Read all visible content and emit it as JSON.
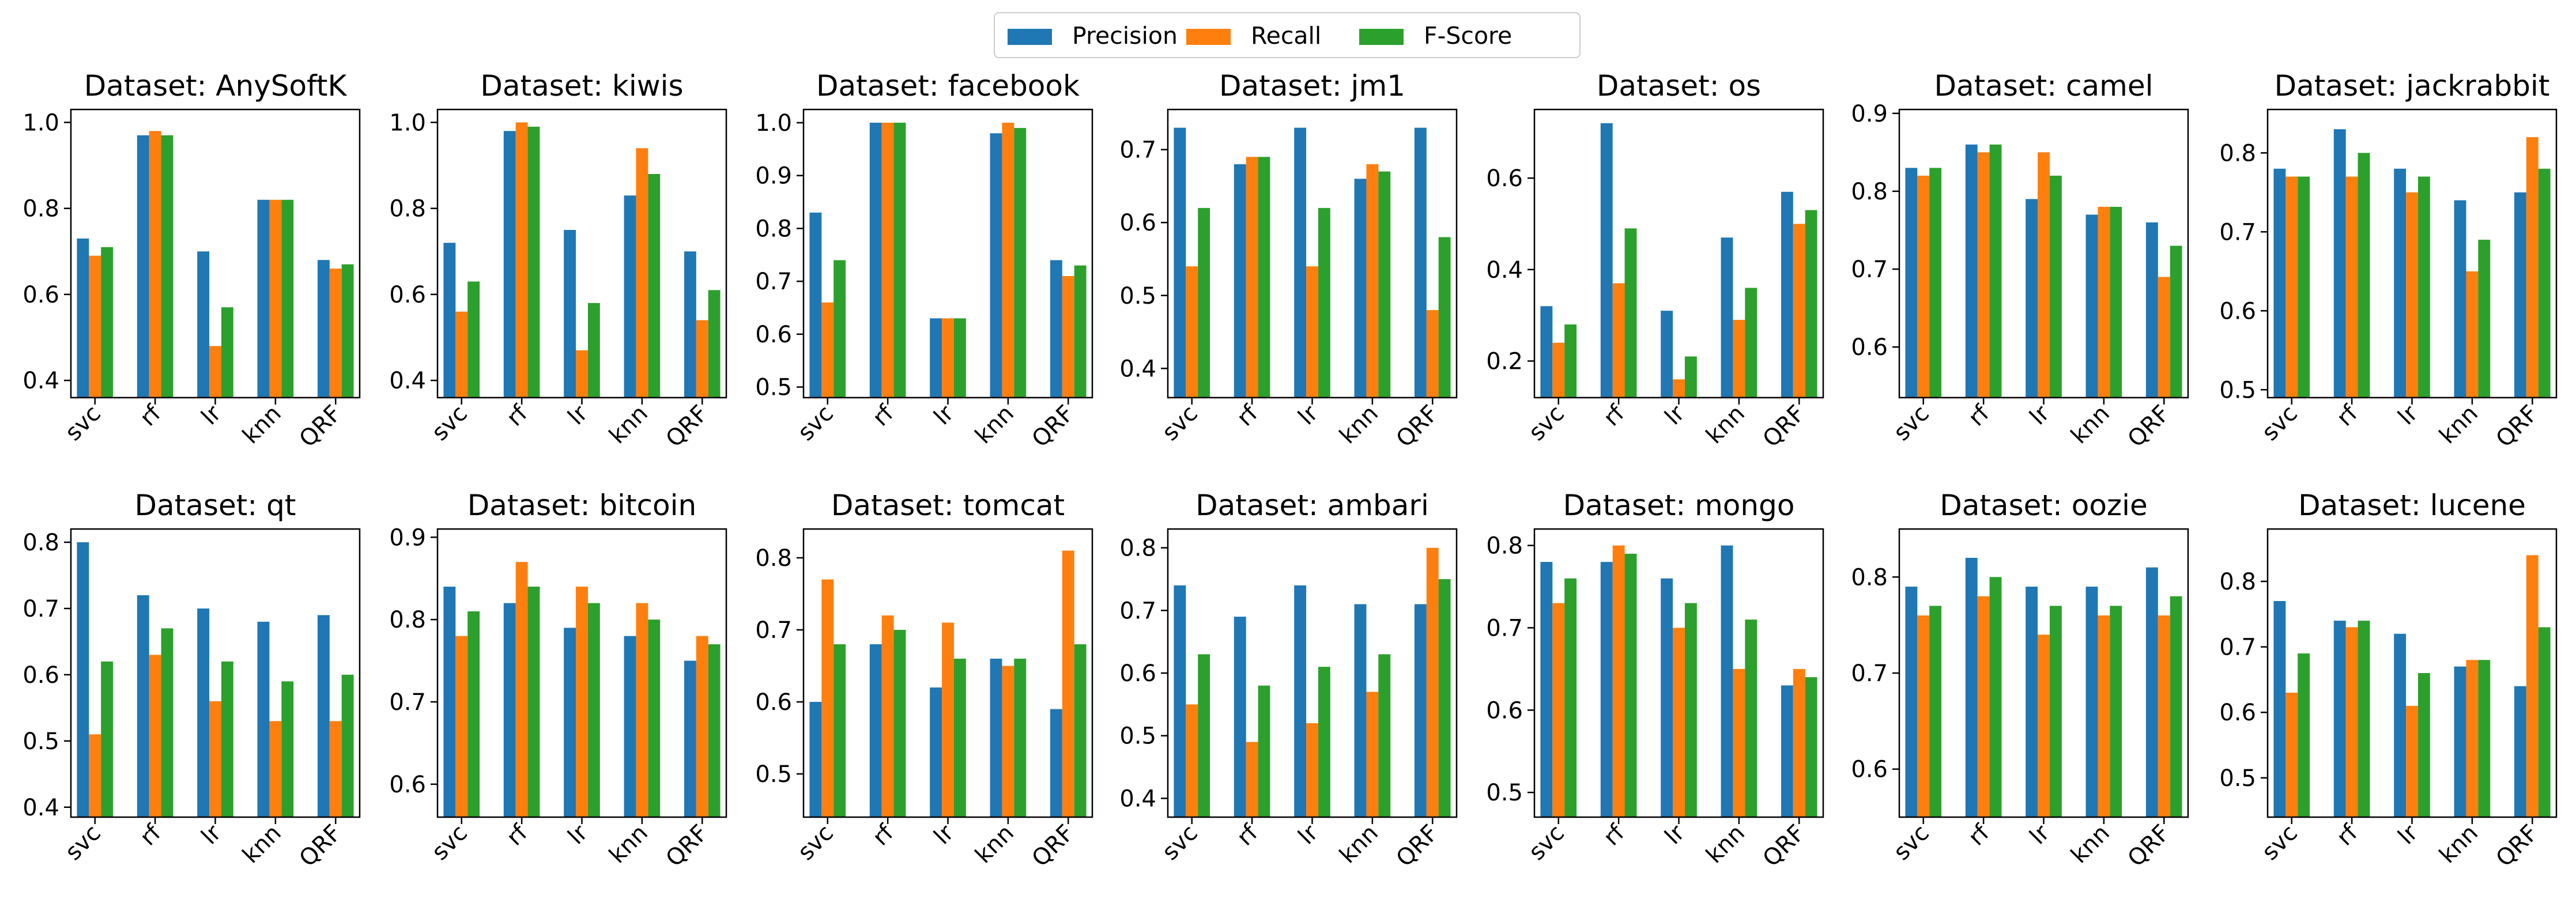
{
  "chart_data": {
    "type": "bar",
    "legend": {
      "placement": "top-center",
      "entries": [
        {
          "name": "Precision",
          "color": "#1f77b4"
        },
        {
          "name": "Recall",
          "color": "#ff7f0e"
        },
        {
          "name": "F-Score",
          "color": "#2ca02c"
        }
      ]
    },
    "categories": [
      "svc",
      "rf",
      "lr",
      "knn",
      "QRF"
    ],
    "panels": [
      {
        "title": "Dataset: AnySoftK",
        "ylim": [
          0.36,
          1.03
        ],
        "yticks": [
          "0.4",
          "0.6",
          "0.8",
          "1.0"
        ],
        "series": [
          [
            0.73,
            0.97,
            0.7,
            0.82,
            0.68
          ],
          [
            0.69,
            0.98,
            0.48,
            0.82,
            0.66
          ],
          [
            0.71,
            0.97,
            0.57,
            0.82,
            0.67
          ]
        ]
      },
      {
        "title": "Dataset: kiwis",
        "ylim": [
          0.36,
          1.03
        ],
        "yticks": [
          "0.4",
          "0.6",
          "0.8",
          "1.0"
        ],
        "series": [
          [
            0.72,
            0.98,
            0.75,
            0.83,
            0.7
          ],
          [
            0.56,
            1.0,
            0.47,
            0.94,
            0.54
          ],
          [
            0.63,
            0.99,
            0.58,
            0.88,
            0.61
          ]
        ]
      },
      {
        "title": "Dataset: facebook",
        "ylim": [
          0.48,
          1.025
        ],
        "yticks": [
          "0.5",
          "0.6",
          "0.7",
          "0.8",
          "0.9",
          "1.0"
        ],
        "series": [
          [
            0.83,
            1.0,
            0.63,
            0.98,
            0.74
          ],
          [
            0.66,
            1.0,
            0.63,
            1.0,
            0.71
          ],
          [
            0.74,
            1.0,
            0.63,
            0.99,
            0.73
          ]
        ]
      },
      {
        "title": "Dataset: jm1",
        "ylim": [
          0.36,
          0.755
        ],
        "yticks": [
          "0.4",
          "0.5",
          "0.6",
          "0.7"
        ],
        "series": [
          [
            0.73,
            0.68,
            0.73,
            0.66,
            0.73
          ],
          [
            0.54,
            0.69,
            0.54,
            0.68,
            0.48
          ],
          [
            0.62,
            0.69,
            0.62,
            0.67,
            0.58
          ]
        ]
      },
      {
        "title": "Dataset: os",
        "ylim": [
          0.12,
          0.75
        ],
        "yticks": [
          "0.2",
          "0.4",
          "0.6"
        ],
        "series": [
          [
            0.32,
            0.72,
            0.31,
            0.47,
            0.57
          ],
          [
            0.24,
            0.37,
            0.16,
            0.29,
            0.5
          ],
          [
            0.28,
            0.49,
            0.21,
            0.36,
            0.53
          ]
        ]
      },
      {
        "title": "Dataset: camel",
        "ylim": [
          0.535,
          0.905
        ],
        "yticks": [
          "0.6",
          "0.7",
          "0.8",
          "0.9"
        ],
        "series": [
          [
            0.83,
            0.86,
            0.79,
            0.77,
            0.76
          ],
          [
            0.82,
            0.85,
            0.85,
            0.78,
            0.69
          ],
          [
            0.83,
            0.86,
            0.82,
            0.78,
            0.73
          ]
        ]
      },
      {
        "title": "Dataset: jackrabbit",
        "ylim": [
          0.49,
          0.855
        ],
        "yticks": [
          "0.5",
          "0.6",
          "0.7",
          "0.8"
        ],
        "series": [
          [
            0.78,
            0.83,
            0.78,
            0.74,
            0.75
          ],
          [
            0.77,
            0.77,
            0.75,
            0.65,
            0.82
          ],
          [
            0.77,
            0.8,
            0.77,
            0.69,
            0.78
          ]
        ]
      },
      {
        "title": "Dataset: qt",
        "ylim": [
          0.385,
          0.82
        ],
        "yticks": [
          "0.4",
          "0.5",
          "0.6",
          "0.7",
          "0.8"
        ],
        "series": [
          [
            0.8,
            0.72,
            0.7,
            0.68,
            0.69
          ],
          [
            0.51,
            0.63,
            0.56,
            0.53,
            0.53
          ],
          [
            0.62,
            0.67,
            0.62,
            0.59,
            0.6
          ]
        ]
      },
      {
        "title": "Dataset: bitcoin",
        "ylim": [
          0.56,
          0.91
        ],
        "yticks": [
          "0.6",
          "0.7",
          "0.8",
          "0.9"
        ],
        "series": [
          [
            0.84,
            0.82,
            0.79,
            0.78,
            0.75
          ],
          [
            0.78,
            0.87,
            0.84,
            0.82,
            0.78
          ],
          [
            0.81,
            0.84,
            0.82,
            0.8,
            0.77
          ]
        ]
      },
      {
        "title": "Dataset: tomcat",
        "ylim": [
          0.44,
          0.84
        ],
        "yticks": [
          "0.5",
          "0.6",
          "0.7",
          "0.8"
        ],
        "series": [
          [
            0.6,
            0.68,
            0.62,
            0.66,
            0.59
          ],
          [
            0.77,
            0.72,
            0.71,
            0.65,
            0.81
          ],
          [
            0.68,
            0.7,
            0.66,
            0.66,
            0.68
          ]
        ]
      },
      {
        "title": "Dataset: ambari",
        "ylim": [
          0.37,
          0.83
        ],
        "yticks": [
          "0.4",
          "0.5",
          "0.6",
          "0.7",
          "0.8"
        ],
        "series": [
          [
            0.74,
            0.69,
            0.74,
            0.71,
            0.71
          ],
          [
            0.55,
            0.49,
            0.52,
            0.57,
            0.8
          ],
          [
            0.63,
            0.58,
            0.61,
            0.63,
            0.75
          ]
        ]
      },
      {
        "title": "Dataset: mongo",
        "ylim": [
          0.47,
          0.82
        ],
        "yticks": [
          "0.5",
          "0.6",
          "0.7",
          "0.8"
        ],
        "series": [
          [
            0.78,
            0.78,
            0.76,
            0.8,
            0.63
          ],
          [
            0.73,
            0.8,
            0.7,
            0.65,
            0.65
          ],
          [
            0.76,
            0.79,
            0.73,
            0.71,
            0.64
          ]
        ]
      },
      {
        "title": "Dataset: oozie",
        "ylim": [
          0.55,
          0.85
        ],
        "yticks": [
          "0.6",
          "0.7",
          "0.8"
        ],
        "series": [
          [
            0.79,
            0.82,
            0.79,
            0.79,
            0.81
          ],
          [
            0.76,
            0.78,
            0.74,
            0.76,
            0.76
          ],
          [
            0.77,
            0.8,
            0.77,
            0.77,
            0.78
          ]
        ]
      },
      {
        "title": "Dataset: lucene",
        "ylim": [
          0.44,
          0.88
        ],
        "yticks": [
          "0.5",
          "0.6",
          "0.7",
          "0.8"
        ],
        "series": [
          [
            0.77,
            0.74,
            0.72,
            0.67,
            0.64
          ],
          [
            0.63,
            0.73,
            0.61,
            0.68,
            0.84
          ],
          [
            0.69,
            0.74,
            0.66,
            0.68,
            0.73
          ]
        ]
      }
    ]
  }
}
